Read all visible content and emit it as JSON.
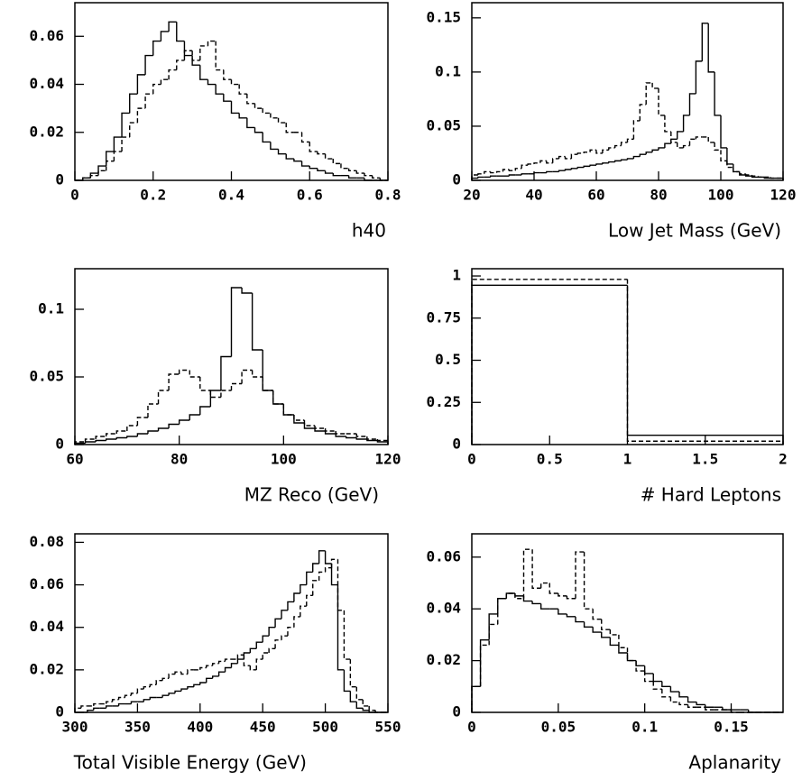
{
  "chart_data": [
    {
      "type": "histogram",
      "xlabel": "h40",
      "bins": [
        0,
        0.02,
        0.04,
        0.06,
        0.08,
        0.1,
        0.12,
        0.14,
        0.16,
        0.18,
        0.2,
        0.22,
        0.24,
        0.26,
        0.28,
        0.3,
        0.32,
        0.34,
        0.36,
        0.38,
        0.4,
        0.42,
        0.44,
        0.46,
        0.48,
        0.5,
        0.52,
        0.54,
        0.56,
        0.58,
        0.6,
        0.62,
        0.64,
        0.66,
        0.68,
        0.7,
        0.72,
        0.74,
        0.76,
        0.78,
        0.8
      ],
      "series": [
        {
          "color": "#000000",
          "line_style": "solid",
          "values": [
            0,
            0.001,
            0.003,
            0.006,
            0.012,
            0.018,
            0.028,
            0.036,
            0.044,
            0.052,
            0.058,
            0.062,
            0.066,
            0.058,
            0.052,
            0.048,
            0.042,
            0.04,
            0.036,
            0.033,
            0.028,
            0.026,
            0.022,
            0.02,
            0.016,
            0.013,
            0.011,
            0.009,
            0.008,
            0.006,
            0.005,
            0.004,
            0.003,
            0.002,
            0.002,
            0.001,
            0.001,
            0,
            0,
            0
          ]
        },
        {
          "color": "#000000",
          "line_style": "dashed",
          "values": [
            0,
            0.001,
            0.002,
            0.004,
            0.008,
            0.012,
            0.018,
            0.024,
            0.03,
            0.036,
            0.04,
            0.042,
            0.046,
            0.05,
            0.054,
            0.05,
            0.056,
            0.058,
            0.046,
            0.042,
            0.04,
            0.036,
            0.032,
            0.03,
            0.028,
            0.026,
            0.024,
            0.02,
            0.02,
            0.016,
            0.012,
            0.011,
            0.009,
            0.007,
            0.005,
            0.004,
            0.003,
            0.002,
            0.001,
            0
          ]
        }
      ],
      "xlim": [
        0,
        0.8
      ],
      "ylim": [
        0,
        0.074
      ],
      "xticks": [
        0,
        0.2,
        0.4,
        0.6,
        0.8
      ],
      "yticks": [
        0,
        0.02,
        0.04,
        0.06
      ]
    },
    {
      "type": "histogram",
      "xlabel": "Low Jet Mass (GeV)",
      "bins": [
        20,
        22,
        24,
        26,
        28,
        30,
        32,
        34,
        36,
        38,
        40,
        42,
        44,
        46,
        48,
        50,
        52,
        54,
        56,
        58,
        60,
        62,
        64,
        66,
        68,
        70,
        72,
        74,
        76,
        78,
        80,
        82,
        84,
        86,
        88,
        90,
        92,
        94,
        96,
        98,
        100,
        102,
        104,
        106,
        108,
        110,
        112,
        114,
        116,
        118,
        120
      ],
      "series": [
        {
          "color": "#000000",
          "line_style": "solid",
          "values": [
            0.002,
            0.003,
            0.003,
            0.004,
            0.004,
            0.004,
            0.005,
            0.005,
            0.006,
            0.006,
            0.007,
            0.007,
            0.008,
            0.008,
            0.009,
            0.01,
            0.011,
            0.012,
            0.013,
            0.014,
            0.015,
            0.016,
            0.017,
            0.018,
            0.019,
            0.02,
            0.022,
            0.024,
            0.026,
            0.028,
            0.03,
            0.034,
            0.038,
            0.045,
            0.06,
            0.08,
            0.11,
            0.145,
            0.1,
            0.06,
            0.03,
            0.015,
            0.008,
            0.005,
            0.004,
            0.003,
            0.003,
            0.002,
            0.002,
            0.002
          ]
        },
        {
          "color": "#000000",
          "line_style": "dashed",
          "values": [
            0.005,
            0.006,
            0.008,
            0.007,
            0.008,
            0.01,
            0.009,
            0.011,
            0.014,
            0.015,
            0.016,
            0.018,
            0.016,
            0.02,
            0.022,
            0.02,
            0.024,
            0.025,
            0.026,
            0.028,
            0.025,
            0.028,
            0.03,
            0.032,
            0.035,
            0.038,
            0.055,
            0.07,
            0.09,
            0.085,
            0.06,
            0.045,
            0.035,
            0.03,
            0.032,
            0.038,
            0.04,
            0.04,
            0.035,
            0.028,
            0.018,
            0.012,
            0.008,
            0.006,
            0.005,
            0.004,
            0.003,
            0.003,
            0.002,
            0.002
          ]
        }
      ],
      "xlim": [
        20,
        120
      ],
      "ylim": [
        0,
        0.164
      ],
      "xticks": [
        20,
        40,
        60,
        80,
        100,
        120
      ],
      "yticks": [
        0,
        0.05,
        0.1,
        0.15
      ]
    },
    {
      "type": "histogram",
      "xlabel": "MZ Reco (GeV)",
      "bins": [
        60,
        62,
        64,
        66,
        68,
        70,
        72,
        74,
        76,
        78,
        80,
        82,
        84,
        86,
        88,
        90,
        92,
        94,
        96,
        98,
        100,
        102,
        104,
        106,
        108,
        110,
        112,
        114,
        116,
        118,
        120
      ],
      "series": [
        {
          "color": "#000000",
          "line_style": "solid",
          "values": [
            0.001,
            0.002,
            0.003,
            0.004,
            0.005,
            0.006,
            0.008,
            0.01,
            0.012,
            0.015,
            0.018,
            0.022,
            0.028,
            0.04,
            0.065,
            0.116,
            0.112,
            0.07,
            0.04,
            0.03,
            0.022,
            0.016,
            0.012,
            0.01,
            0.008,
            0.006,
            0.005,
            0.004,
            0.003,
            0.002
          ]
        },
        {
          "color": "#000000",
          "line_style": "dashed",
          "values": [
            0.002,
            0.004,
            0.006,
            0.008,
            0.01,
            0.014,
            0.02,
            0.03,
            0.04,
            0.052,
            0.055,
            0.05,
            0.04,
            0.035,
            0.04,
            0.045,
            0.055,
            0.05,
            0.04,
            0.03,
            0.022,
            0.018,
            0.014,
            0.012,
            0.01,
            0.008,
            0.008,
            0.006,
            0.004,
            0.003
          ]
        }
      ],
      "xlim": [
        60,
        120
      ],
      "ylim": [
        0,
        0.13
      ],
      "xticks": [
        60,
        80,
        100,
        120
      ],
      "yticks": [
        0,
        0.05,
        0.1
      ]
    },
    {
      "type": "histogram",
      "xlabel": "# Hard Leptons",
      "bins": [
        0,
        1,
        2
      ],
      "series": [
        {
          "color": "#000000",
          "line_style": "solid",
          "values": [
            0.945,
            0.055
          ]
        },
        {
          "color": "#000000",
          "line_style": "dashed",
          "values": [
            0.98,
            0.02
          ]
        }
      ],
      "xlim": [
        0,
        2
      ],
      "ylim": [
        0,
        1.043
      ],
      "xticks": [
        0,
        0.5,
        1,
        1.5,
        2
      ],
      "yticks": [
        0,
        0.25,
        0.5,
        0.75,
        1
      ]
    },
    {
      "type": "histogram",
      "xlabel": "Total Visible Energy (GeV)",
      "bins": [
        300,
        305,
        310,
        315,
        320,
        325,
        330,
        335,
        340,
        345,
        350,
        355,
        360,
        365,
        370,
        375,
        380,
        385,
        390,
        395,
        400,
        405,
        410,
        415,
        420,
        425,
        430,
        435,
        440,
        445,
        450,
        455,
        460,
        465,
        470,
        475,
        480,
        485,
        490,
        495,
        500,
        505,
        510,
        515,
        520,
        525,
        530,
        535,
        540,
        545,
        550
      ],
      "series": [
        {
          "color": "#000000",
          "line_style": "solid",
          "values": [
            0,
            0,
            0.001,
            0.002,
            0.002,
            0.003,
            0.003,
            0.004,
            0.004,
            0.005,
            0.005,
            0.006,
            0.007,
            0.007,
            0.008,
            0.009,
            0.01,
            0.011,
            0.012,
            0.013,
            0.014,
            0.016,
            0.017,
            0.019,
            0.021,
            0.023,
            0.025,
            0.028,
            0.03,
            0.033,
            0.036,
            0.04,
            0.044,
            0.048,
            0.052,
            0.056,
            0.06,
            0.066,
            0.07,
            0.076,
            0.07,
            0.06,
            0.02,
            0.01,
            0.005,
            0.002,
            0.001,
            0,
            0,
            0
          ]
        },
        {
          "color": "#000000",
          "line_style": "dashed",
          "values": [
            0.002,
            0.003,
            0.003,
            0.004,
            0.004,
            0.005,
            0.006,
            0.007,
            0.008,
            0.009,
            0.011,
            0.012,
            0.013,
            0.015,
            0.016,
            0.018,
            0.019,
            0.018,
            0.02,
            0.02,
            0.021,
            0.022,
            0.023,
            0.024,
            0.025,
            0.025,
            0.027,
            0.022,
            0.02,
            0.025,
            0.028,
            0.03,
            0.034,
            0.036,
            0.04,
            0.045,
            0.05,
            0.055,
            0.062,
            0.066,
            0.068,
            0.072,
            0.048,
            0.025,
            0.012,
            0.006,
            0.003,
            0.001,
            0,
            0
          ]
        }
      ],
      "xlim": [
        300,
        550
      ],
      "ylim": [
        0,
        0.084
      ],
      "xticks": [
        300,
        350,
        400,
        450,
        500,
        550
      ],
      "yticks": [
        0,
        0.02,
        0.04,
        0.06,
        0.08
      ]
    },
    {
      "type": "histogram",
      "xlabel": "Aplanarity",
      "bins": [
        0,
        0.005,
        0.01,
        0.015,
        0.02,
        0.025,
        0.03,
        0.035,
        0.04,
        0.045,
        0.05,
        0.055,
        0.06,
        0.065,
        0.07,
        0.075,
        0.08,
        0.085,
        0.09,
        0.095,
        0.1,
        0.105,
        0.11,
        0.115,
        0.12,
        0.125,
        0.13,
        0.135,
        0.14,
        0.145,
        0.15,
        0.155,
        0.16,
        0.165,
        0.17,
        0.175,
        0.18
      ],
      "series": [
        {
          "color": "#000000",
          "line_style": "solid",
          "values": [
            0.01,
            0.028,
            0.038,
            0.044,
            0.046,
            0.045,
            0.043,
            0.042,
            0.04,
            0.04,
            0.038,
            0.037,
            0.035,
            0.033,
            0.031,
            0.029,
            0.026,
            0.023,
            0.02,
            0.018,
            0.015,
            0.012,
            0.01,
            0.008,
            0.006,
            0.004,
            0.003,
            0.002,
            0.002,
            0.001,
            0.001,
            0.001,
            0,
            0,
            0,
            0
          ]
        },
        {
          "color": "#000000",
          "line_style": "dashed",
          "values": [
            0.01,
            0.026,
            0.034,
            0.044,
            0.046,
            0.044,
            0.063,
            0.048,
            0.05,
            0.046,
            0.045,
            0.044,
            0.062,
            0.04,
            0.036,
            0.032,
            0.03,
            0.025,
            0.02,
            0.016,
            0.012,
            0.009,
            0.006,
            0.004,
            0.003,
            0.002,
            0.002,
            0.001,
            0.001,
            0.001,
            0,
            0,
            0,
            0,
            0,
            0
          ]
        }
      ],
      "xlim": [
        0,
        0.18
      ],
      "ylim": [
        0,
        0.069
      ],
      "xticks": [
        0,
        0.05,
        0.1,
        0.15
      ],
      "yticks": [
        0,
        0.02,
        0.04,
        0.06
      ]
    }
  ]
}
